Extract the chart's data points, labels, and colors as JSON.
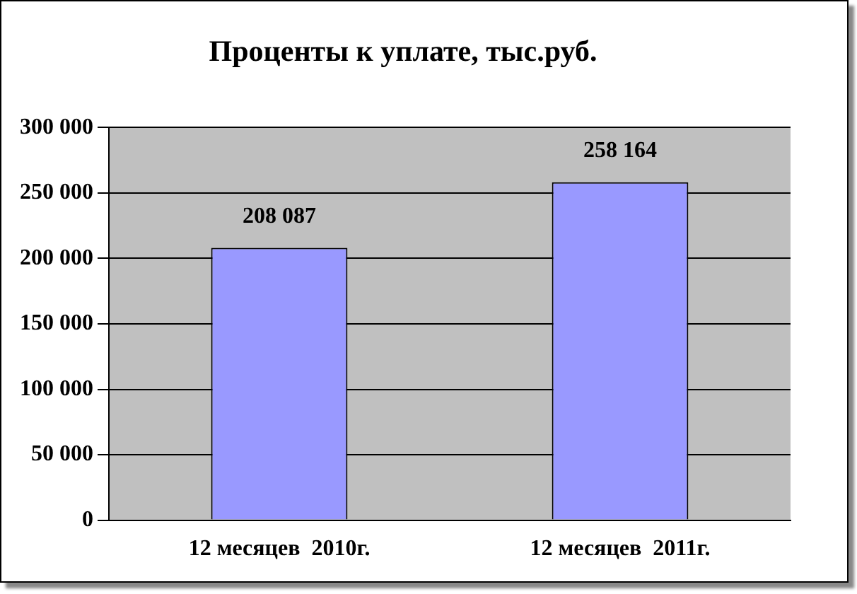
{
  "chart_data": {
    "type": "bar",
    "title": "Проценты к уплате, тыс.руб.",
    "categories": [
      "12 месяцев  2010г.",
      "12 месяцев  2011г."
    ],
    "values": [
      208087,
      258164
    ],
    "color": "#9999ff",
    "value_labels": [
      "208 087",
      "258 164"
    ],
    "ylim": [
      0,
      300000
    ],
    "yticks": [
      {
        "value": 0,
        "label": "0"
      },
      {
        "value": 50000,
        "label": "50 000"
      },
      {
        "value": 100000,
        "label": "100 000"
      },
      {
        "value": 150000,
        "label": "150 000"
      },
      {
        "value": 200000,
        "label": "200 000"
      },
      {
        "value": 250000,
        "label": "250 000"
      },
      {
        "value": 300000,
        "label": "300 000"
      }
    ],
    "grid": "y",
    "legend": false
  }
}
